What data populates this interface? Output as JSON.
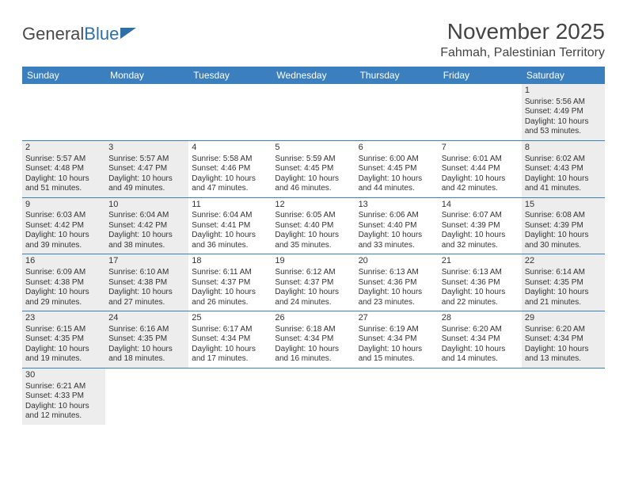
{
  "logo": {
    "text_dark": "General",
    "text_blue": "Blue"
  },
  "title": "November 2025",
  "location": "Fahmah, Palestinian Territory",
  "colors": {
    "header_bg": "#3b7fbf",
    "header_text": "#ffffff",
    "shade_bg": "#ededed",
    "border": "#3b7fbf",
    "title_color": "#444444",
    "body_text": "#333333"
  },
  "day_headers": [
    "Sunday",
    "Monday",
    "Tuesday",
    "Wednesday",
    "Thursday",
    "Friday",
    "Saturday"
  ],
  "weeks": [
    [
      {
        "empty": true
      },
      {
        "empty": true
      },
      {
        "empty": true
      },
      {
        "empty": true
      },
      {
        "empty": true
      },
      {
        "empty": true
      },
      {
        "day": 1,
        "shade": true,
        "sunrise": "Sunrise: 5:56 AM",
        "sunset": "Sunset: 4:49 PM",
        "daylight1": "Daylight: 10 hours",
        "daylight2": "and 53 minutes."
      }
    ],
    [
      {
        "day": 2,
        "shade": true,
        "sunrise": "Sunrise: 5:57 AM",
        "sunset": "Sunset: 4:48 PM",
        "daylight1": "Daylight: 10 hours",
        "daylight2": "and 51 minutes."
      },
      {
        "day": 3,
        "shade": true,
        "sunrise": "Sunrise: 5:57 AM",
        "sunset": "Sunset: 4:47 PM",
        "daylight1": "Daylight: 10 hours",
        "daylight2": "and 49 minutes."
      },
      {
        "day": 4,
        "shade": false,
        "sunrise": "Sunrise: 5:58 AM",
        "sunset": "Sunset: 4:46 PM",
        "daylight1": "Daylight: 10 hours",
        "daylight2": "and 47 minutes."
      },
      {
        "day": 5,
        "shade": false,
        "sunrise": "Sunrise: 5:59 AM",
        "sunset": "Sunset: 4:45 PM",
        "daylight1": "Daylight: 10 hours",
        "daylight2": "and 46 minutes."
      },
      {
        "day": 6,
        "shade": false,
        "sunrise": "Sunrise: 6:00 AM",
        "sunset": "Sunset: 4:45 PM",
        "daylight1": "Daylight: 10 hours",
        "daylight2": "and 44 minutes."
      },
      {
        "day": 7,
        "shade": false,
        "sunrise": "Sunrise: 6:01 AM",
        "sunset": "Sunset: 4:44 PM",
        "daylight1": "Daylight: 10 hours",
        "daylight2": "and 42 minutes."
      },
      {
        "day": 8,
        "shade": true,
        "sunrise": "Sunrise: 6:02 AM",
        "sunset": "Sunset: 4:43 PM",
        "daylight1": "Daylight: 10 hours",
        "daylight2": "and 41 minutes."
      }
    ],
    [
      {
        "day": 9,
        "shade": true,
        "sunrise": "Sunrise: 6:03 AM",
        "sunset": "Sunset: 4:42 PM",
        "daylight1": "Daylight: 10 hours",
        "daylight2": "and 39 minutes."
      },
      {
        "day": 10,
        "shade": true,
        "sunrise": "Sunrise: 6:04 AM",
        "sunset": "Sunset: 4:42 PM",
        "daylight1": "Daylight: 10 hours",
        "daylight2": "and 38 minutes."
      },
      {
        "day": 11,
        "shade": false,
        "sunrise": "Sunrise: 6:04 AM",
        "sunset": "Sunset: 4:41 PM",
        "daylight1": "Daylight: 10 hours",
        "daylight2": "and 36 minutes."
      },
      {
        "day": 12,
        "shade": false,
        "sunrise": "Sunrise: 6:05 AM",
        "sunset": "Sunset: 4:40 PM",
        "daylight1": "Daylight: 10 hours",
        "daylight2": "and 35 minutes."
      },
      {
        "day": 13,
        "shade": false,
        "sunrise": "Sunrise: 6:06 AM",
        "sunset": "Sunset: 4:40 PM",
        "daylight1": "Daylight: 10 hours",
        "daylight2": "and 33 minutes."
      },
      {
        "day": 14,
        "shade": false,
        "sunrise": "Sunrise: 6:07 AM",
        "sunset": "Sunset: 4:39 PM",
        "daylight1": "Daylight: 10 hours",
        "daylight2": "and 32 minutes."
      },
      {
        "day": 15,
        "shade": true,
        "sunrise": "Sunrise: 6:08 AM",
        "sunset": "Sunset: 4:39 PM",
        "daylight1": "Daylight: 10 hours",
        "daylight2": "and 30 minutes."
      }
    ],
    [
      {
        "day": 16,
        "shade": true,
        "sunrise": "Sunrise: 6:09 AM",
        "sunset": "Sunset: 4:38 PM",
        "daylight1": "Daylight: 10 hours",
        "daylight2": "and 29 minutes."
      },
      {
        "day": 17,
        "shade": true,
        "sunrise": "Sunrise: 6:10 AM",
        "sunset": "Sunset: 4:38 PM",
        "daylight1": "Daylight: 10 hours",
        "daylight2": "and 27 minutes."
      },
      {
        "day": 18,
        "shade": false,
        "sunrise": "Sunrise: 6:11 AM",
        "sunset": "Sunset: 4:37 PM",
        "daylight1": "Daylight: 10 hours",
        "daylight2": "and 26 minutes."
      },
      {
        "day": 19,
        "shade": false,
        "sunrise": "Sunrise: 6:12 AM",
        "sunset": "Sunset: 4:37 PM",
        "daylight1": "Daylight: 10 hours",
        "daylight2": "and 24 minutes."
      },
      {
        "day": 20,
        "shade": false,
        "sunrise": "Sunrise: 6:13 AM",
        "sunset": "Sunset: 4:36 PM",
        "daylight1": "Daylight: 10 hours",
        "daylight2": "and 23 minutes."
      },
      {
        "day": 21,
        "shade": false,
        "sunrise": "Sunrise: 6:13 AM",
        "sunset": "Sunset: 4:36 PM",
        "daylight1": "Daylight: 10 hours",
        "daylight2": "and 22 minutes."
      },
      {
        "day": 22,
        "shade": true,
        "sunrise": "Sunrise: 6:14 AM",
        "sunset": "Sunset: 4:35 PM",
        "daylight1": "Daylight: 10 hours",
        "daylight2": "and 21 minutes."
      }
    ],
    [
      {
        "day": 23,
        "shade": true,
        "sunrise": "Sunrise: 6:15 AM",
        "sunset": "Sunset: 4:35 PM",
        "daylight1": "Daylight: 10 hours",
        "daylight2": "and 19 minutes."
      },
      {
        "day": 24,
        "shade": true,
        "sunrise": "Sunrise: 6:16 AM",
        "sunset": "Sunset: 4:35 PM",
        "daylight1": "Daylight: 10 hours",
        "daylight2": "and 18 minutes."
      },
      {
        "day": 25,
        "shade": false,
        "sunrise": "Sunrise: 6:17 AM",
        "sunset": "Sunset: 4:34 PM",
        "daylight1": "Daylight: 10 hours",
        "daylight2": "and 17 minutes."
      },
      {
        "day": 26,
        "shade": false,
        "sunrise": "Sunrise: 6:18 AM",
        "sunset": "Sunset: 4:34 PM",
        "daylight1": "Daylight: 10 hours",
        "daylight2": "and 16 minutes."
      },
      {
        "day": 27,
        "shade": false,
        "sunrise": "Sunrise: 6:19 AM",
        "sunset": "Sunset: 4:34 PM",
        "daylight1": "Daylight: 10 hours",
        "daylight2": "and 15 minutes."
      },
      {
        "day": 28,
        "shade": false,
        "sunrise": "Sunrise: 6:20 AM",
        "sunset": "Sunset: 4:34 PM",
        "daylight1": "Daylight: 10 hours",
        "daylight2": "and 14 minutes."
      },
      {
        "day": 29,
        "shade": true,
        "sunrise": "Sunrise: 6:20 AM",
        "sunset": "Sunset: 4:34 PM",
        "daylight1": "Daylight: 10 hours",
        "daylight2": "and 13 minutes."
      }
    ],
    [
      {
        "day": 30,
        "shade": true,
        "sunrise": "Sunrise: 6:21 AM",
        "sunset": "Sunset: 4:33 PM",
        "daylight1": "Daylight: 10 hours",
        "daylight2": "and 12 minutes."
      },
      {
        "empty": true
      },
      {
        "empty": true
      },
      {
        "empty": true
      },
      {
        "empty": true
      },
      {
        "empty": true
      },
      {
        "empty": true
      }
    ]
  ]
}
